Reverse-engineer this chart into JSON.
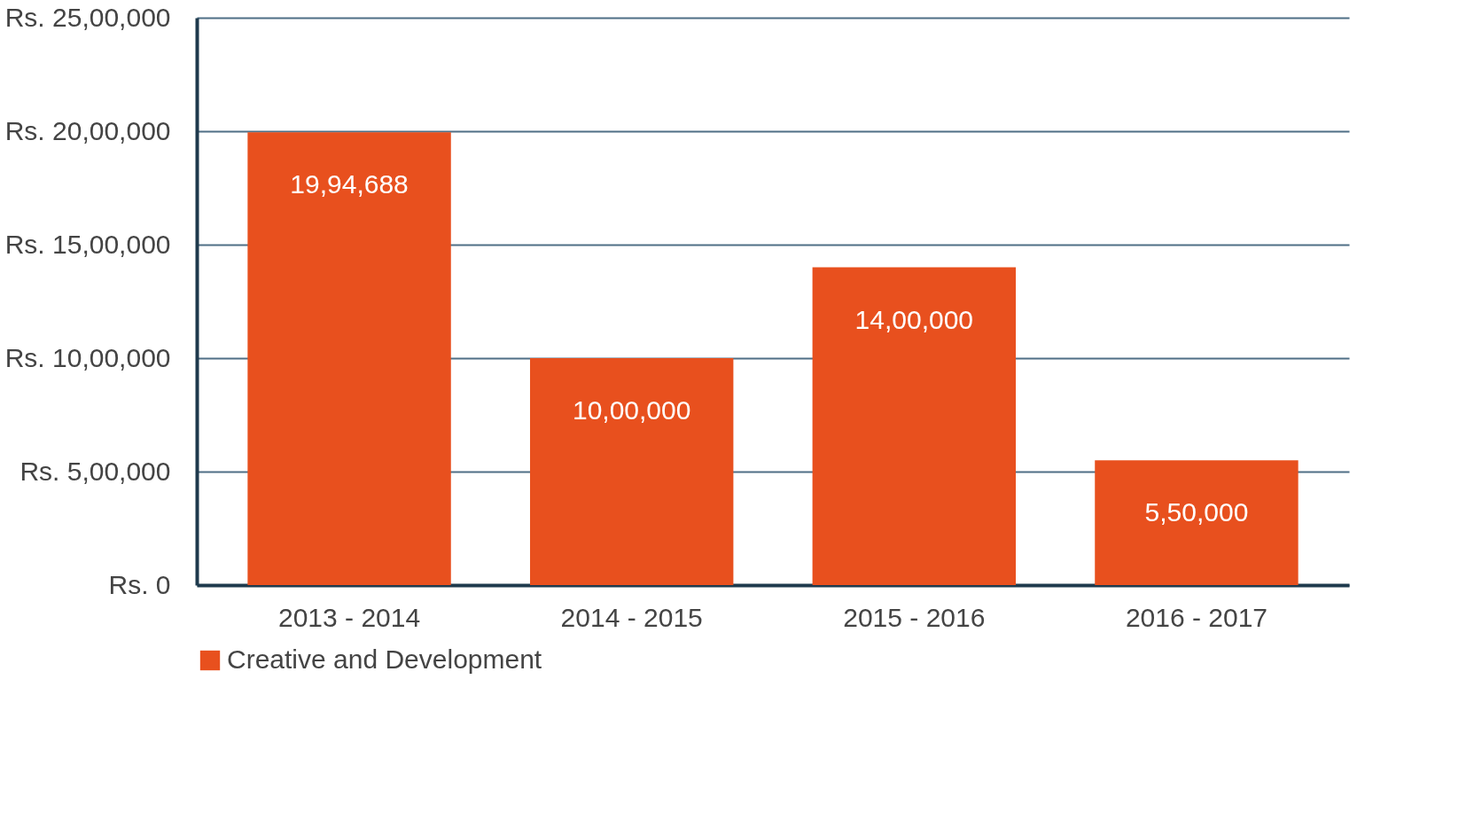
{
  "chart_data": {
    "type": "bar",
    "categories": [
      "2013 - 2014",
      "2014 - 2015",
      "2015 - 2016",
      "2016 - 2017"
    ],
    "series": [
      {
        "name": "Creative and Development",
        "color": "#e8501e",
        "values": [
          1994688,
          1000000,
          1400000,
          550000
        ],
        "value_labels": [
          "19,94,688",
          "10,00,000",
          "14,00,000",
          "5,50,000"
        ]
      }
    ],
    "ylim": [
      0,
      2500000
    ],
    "yticks": [
      {
        "value": 0,
        "label": "Rs. 0"
      },
      {
        "value": 500000,
        "label": "Rs. 5,00,000"
      },
      {
        "value": 1000000,
        "label": "Rs. 10,00,000"
      },
      {
        "value": 1500000,
        "label": "Rs. 15,00,000"
      },
      {
        "value": 2000000,
        "label": "Rs. 20,00,000"
      },
      {
        "value": 2500000,
        "label": "Rs. 25,00,000"
      }
    ],
    "grid": "y",
    "legend": "bottom"
  }
}
